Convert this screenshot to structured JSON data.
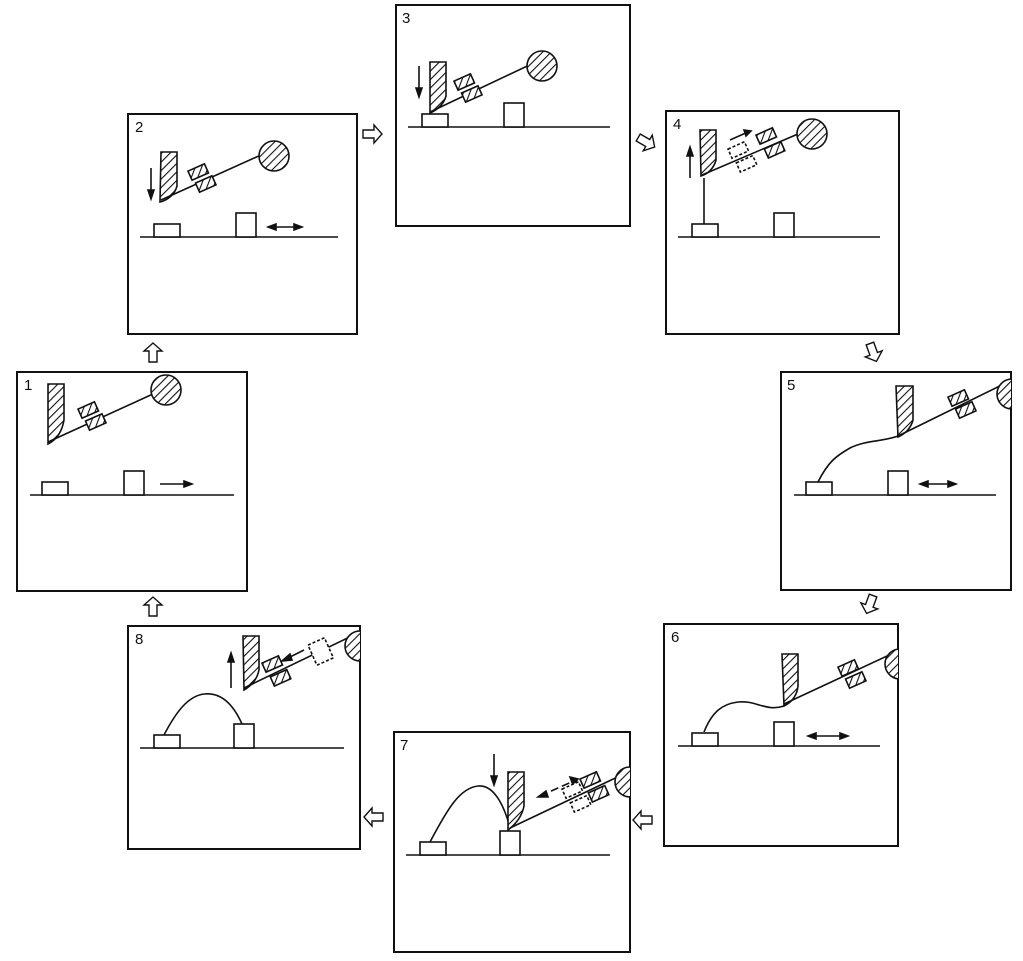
{
  "diagram": {
    "ink_color": "#111111",
    "background_color": "#ffffff",
    "panels": [
      {
        "id": 1,
        "label": "1"
      },
      {
        "id": 2,
        "label": "2"
      },
      {
        "id": 3,
        "label": "3"
      },
      {
        "id": 4,
        "label": "4"
      },
      {
        "id": 5,
        "label": "5"
      },
      {
        "id": 6,
        "label": "6"
      },
      {
        "id": 7,
        "label": "7"
      },
      {
        "id": 8,
        "label": "8"
      }
    ],
    "cycle_order": [
      1,
      2,
      3,
      4,
      5,
      6,
      7,
      8
    ],
    "transition_arrow_icon": "hollow-arrow-icon"
  }
}
